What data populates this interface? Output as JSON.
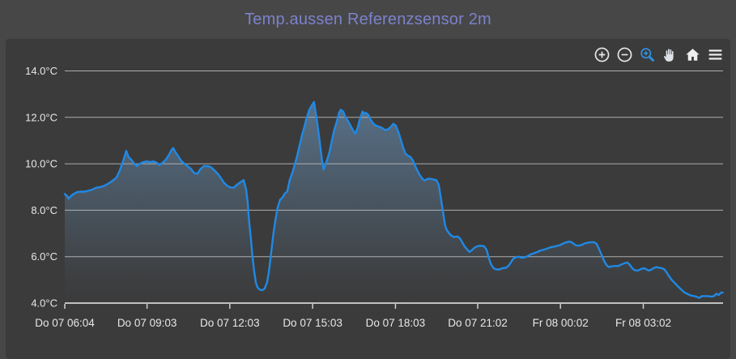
{
  "title": "Temp.aussen Referenzsensor 2m",
  "toolbar": {
    "icon_color": "#e9e9e9",
    "active_color": "#2e8fdf",
    "buttons": [
      {
        "name": "zoom-in",
        "icon": "circle-plus-icon",
        "active": false
      },
      {
        "name": "zoom-out",
        "icon": "circle-minus-icon",
        "active": false
      },
      {
        "name": "box-zoom",
        "icon": "magnifier-plus-icon",
        "active": true
      },
      {
        "name": "pan",
        "icon": "hand-icon",
        "active": false
      },
      {
        "name": "home",
        "icon": "home-icon",
        "active": false
      },
      {
        "name": "menu",
        "icon": "hamburger-icon",
        "active": false
      }
    ]
  },
  "colors": {
    "page_background": "#474747",
    "panel_background": "#3b3b3b",
    "title": "#7b82cb",
    "gridline": "#b9b9b9",
    "axis_line": "#cfcfcf",
    "tick_label": "#e8e8e8",
    "line": "#2089e5",
    "fill_top": "#6f9dc8"
  },
  "chart_data": {
    "type": "area",
    "title": "Temp.aussen Referenzsensor 2m",
    "xlabel": "",
    "ylabel": "",
    "y_unit": "°C",
    "grid": true,
    "legend": "none",
    "x_range": [
      6.07,
      29.92
    ],
    "y_range": [
      4,
      15.1
    ],
    "y_ticks": [
      {
        "v": 4,
        "label": "4.0°C"
      },
      {
        "v": 6,
        "label": "6.0°C"
      },
      {
        "v": 8,
        "label": "8.0°C"
      },
      {
        "v": 10,
        "label": "10.0°C"
      },
      {
        "v": 12,
        "label": "12.0°C"
      },
      {
        "v": 14,
        "label": "14.0°C"
      }
    ],
    "x_ticks": [
      {
        "t": 6.07,
        "label": "Do 07 06:04"
      },
      {
        "t": 9.05,
        "label": "Do 07 09:03"
      },
      {
        "t": 12.05,
        "label": "Do 07 12:03"
      },
      {
        "t": 15.05,
        "label": "Do 07 15:03"
      },
      {
        "t": 18.05,
        "label": "Do 07 18:03"
      },
      {
        "t": 21.03,
        "label": "Do 07 21:02"
      },
      {
        "t": 24.03,
        "label": "Fr 08 00:02"
      },
      {
        "t": 27.03,
        "label": "Fr 08 03:02"
      }
    ],
    "series": [
      {
        "name": "Temp.aussen Referenzsensor 2m",
        "color": "#2089e5",
        "points": [
          [
            6.07,
            8.7
          ],
          [
            6.16,
            8.6
          ],
          [
            6.21,
            8.5
          ],
          [
            6.3,
            8.62
          ],
          [
            6.39,
            8.7
          ],
          [
            6.51,
            8.78
          ],
          [
            6.65,
            8.8
          ],
          [
            6.8,
            8.8
          ],
          [
            6.95,
            8.85
          ],
          [
            7.09,
            8.9
          ],
          [
            7.21,
            8.97
          ],
          [
            7.36,
            9.0
          ],
          [
            7.5,
            9.05
          ],
          [
            7.65,
            9.15
          ],
          [
            7.8,
            9.27
          ],
          [
            7.94,
            9.4
          ],
          [
            8.06,
            9.7
          ],
          [
            8.18,
            10.1
          ],
          [
            8.3,
            10.56
          ],
          [
            8.38,
            10.3
          ],
          [
            8.5,
            10.15
          ],
          [
            8.59,
            10.0
          ],
          [
            8.68,
            9.9
          ],
          [
            8.79,
            10.0
          ],
          [
            8.91,
            10.07
          ],
          [
            9.06,
            10.1
          ],
          [
            9.18,
            10.07
          ],
          [
            9.29,
            10.1
          ],
          [
            9.41,
            10.03
          ],
          [
            9.5,
            9.95
          ],
          [
            9.62,
            10.05
          ],
          [
            9.73,
            10.18
          ],
          [
            9.85,
            10.4
          ],
          [
            9.94,
            10.6
          ],
          [
            10.0,
            10.68
          ],
          [
            10.08,
            10.5
          ],
          [
            10.17,
            10.35
          ],
          [
            10.29,
            10.12
          ],
          [
            10.41,
            10.0
          ],
          [
            10.52,
            9.9
          ],
          [
            10.64,
            9.78
          ],
          [
            10.76,
            9.6
          ],
          [
            10.88,
            9.57
          ],
          [
            10.99,
            9.78
          ],
          [
            11.11,
            9.9
          ],
          [
            11.26,
            9.9
          ],
          [
            11.37,
            9.85
          ],
          [
            11.49,
            9.72
          ],
          [
            11.61,
            9.58
          ],
          [
            11.73,
            9.38
          ],
          [
            11.84,
            9.18
          ],
          [
            11.96,
            9.05
          ],
          [
            12.08,
            8.98
          ],
          [
            12.2,
            8.97
          ],
          [
            12.31,
            9.1
          ],
          [
            12.43,
            9.2
          ],
          [
            12.55,
            9.3
          ],
          [
            12.64,
            8.9
          ],
          [
            12.7,
            8.3
          ],
          [
            12.75,
            7.5
          ],
          [
            12.81,
            6.8
          ],
          [
            12.87,
            6.0
          ],
          [
            12.93,
            5.4
          ],
          [
            12.99,
            4.9
          ],
          [
            13.05,
            4.68
          ],
          [
            13.13,
            4.58
          ],
          [
            13.22,
            4.55
          ],
          [
            13.31,
            4.62
          ],
          [
            13.4,
            4.9
          ],
          [
            13.46,
            5.3
          ],
          [
            13.52,
            5.9
          ],
          [
            13.57,
            6.4
          ],
          [
            13.63,
            7.0
          ],
          [
            13.69,
            7.5
          ],
          [
            13.78,
            8.1
          ],
          [
            13.87,
            8.45
          ],
          [
            13.96,
            8.55
          ],
          [
            14.04,
            8.72
          ],
          [
            14.13,
            8.8
          ],
          [
            14.22,
            9.3
          ],
          [
            14.31,
            9.6
          ],
          [
            14.4,
            9.95
          ],
          [
            14.48,
            10.3
          ],
          [
            14.57,
            10.75
          ],
          [
            14.66,
            11.2
          ],
          [
            14.75,
            11.6
          ],
          [
            14.83,
            11.95
          ],
          [
            14.92,
            12.3
          ],
          [
            15.01,
            12.5
          ],
          [
            15.1,
            12.66
          ],
          [
            15.16,
            12.2
          ],
          [
            15.22,
            11.75
          ],
          [
            15.28,
            11.2
          ],
          [
            15.33,
            10.7
          ],
          [
            15.39,
            10.15
          ],
          [
            15.45,
            9.75
          ],
          [
            15.51,
            9.95
          ],
          [
            15.57,
            10.15
          ],
          [
            15.66,
            10.5
          ],
          [
            15.74,
            10.95
          ],
          [
            15.83,
            11.45
          ],
          [
            15.92,
            11.8
          ],
          [
            16.01,
            12.2
          ],
          [
            16.07,
            12.33
          ],
          [
            16.16,
            12.25
          ],
          [
            16.24,
            12.0
          ],
          [
            16.33,
            11.85
          ],
          [
            16.42,
            11.65
          ],
          [
            16.51,
            11.45
          ],
          [
            16.6,
            11.3
          ],
          [
            16.68,
            11.55
          ],
          [
            16.77,
            11.95
          ],
          [
            16.86,
            12.25
          ],
          [
            16.92,
            12.15
          ],
          [
            16.98,
            12.2
          ],
          [
            17.07,
            12.1
          ],
          [
            17.15,
            11.9
          ],
          [
            17.24,
            11.75
          ],
          [
            17.33,
            11.65
          ],
          [
            17.45,
            11.6
          ],
          [
            17.56,
            11.55
          ],
          [
            17.68,
            11.45
          ],
          [
            17.8,
            11.5
          ],
          [
            17.89,
            11.6
          ],
          [
            17.97,
            11.72
          ],
          [
            18.06,
            11.65
          ],
          [
            18.15,
            11.4
          ],
          [
            18.24,
            11.05
          ],
          [
            18.33,
            10.7
          ],
          [
            18.41,
            10.45
          ],
          [
            18.5,
            10.35
          ],
          [
            18.59,
            10.3
          ],
          [
            18.68,
            10.15
          ],
          [
            18.77,
            9.9
          ],
          [
            18.85,
            9.7
          ],
          [
            18.94,
            9.5
          ],
          [
            19.03,
            9.35
          ],
          [
            19.12,
            9.28
          ],
          [
            19.21,
            9.35
          ],
          [
            19.32,
            9.35
          ],
          [
            19.44,
            9.32
          ],
          [
            19.53,
            9.3
          ],
          [
            19.62,
            9.1
          ],
          [
            19.7,
            8.5
          ],
          [
            19.79,
            7.8
          ],
          [
            19.85,
            7.35
          ],
          [
            19.91,
            7.15
          ],
          [
            20.0,
            7.0
          ],
          [
            20.08,
            6.9
          ],
          [
            20.17,
            6.85
          ],
          [
            20.29,
            6.87
          ],
          [
            20.38,
            6.8
          ],
          [
            20.47,
            6.62
          ],
          [
            20.55,
            6.45
          ],
          [
            20.64,
            6.32
          ],
          [
            20.73,
            6.2
          ],
          [
            20.82,
            6.28
          ],
          [
            20.91,
            6.38
          ],
          [
            21.02,
            6.45
          ],
          [
            21.14,
            6.47
          ],
          [
            21.26,
            6.45
          ],
          [
            21.35,
            6.3
          ],
          [
            21.43,
            5.95
          ],
          [
            21.52,
            5.65
          ],
          [
            21.61,
            5.5
          ],
          [
            21.7,
            5.45
          ],
          [
            21.82,
            5.45
          ],
          [
            21.93,
            5.5
          ],
          [
            22.05,
            5.52
          ],
          [
            22.14,
            5.6
          ],
          [
            22.23,
            5.75
          ],
          [
            22.31,
            5.9
          ],
          [
            22.4,
            5.97
          ],
          [
            22.52,
            6.0
          ],
          [
            22.61,
            5.95
          ],
          [
            22.72,
            5.97
          ],
          [
            22.84,
            6.02
          ],
          [
            22.96,
            6.1
          ],
          [
            23.08,
            6.15
          ],
          [
            23.19,
            6.2
          ],
          [
            23.31,
            6.27
          ],
          [
            23.43,
            6.3
          ],
          [
            23.55,
            6.35
          ],
          [
            23.66,
            6.4
          ],
          [
            23.78,
            6.43
          ],
          [
            23.9,
            6.46
          ],
          [
            24.02,
            6.5
          ],
          [
            24.13,
            6.57
          ],
          [
            24.25,
            6.62
          ],
          [
            24.37,
            6.65
          ],
          [
            24.46,
            6.6
          ],
          [
            24.57,
            6.5
          ],
          [
            24.66,
            6.47
          ],
          [
            24.78,
            6.5
          ],
          [
            24.9,
            6.57
          ],
          [
            25.01,
            6.6
          ],
          [
            25.13,
            6.62
          ],
          [
            25.25,
            6.62
          ],
          [
            25.34,
            6.55
          ],
          [
            25.42,
            6.35
          ],
          [
            25.51,
            6.1
          ],
          [
            25.6,
            5.85
          ],
          [
            25.69,
            5.65
          ],
          [
            25.78,
            5.55
          ],
          [
            25.89,
            5.58
          ],
          [
            26.01,
            5.6
          ],
          [
            26.13,
            5.6
          ],
          [
            26.25,
            5.67
          ],
          [
            26.36,
            5.72
          ],
          [
            26.45,
            5.75
          ],
          [
            26.54,
            5.65
          ],
          [
            26.63,
            5.5
          ],
          [
            26.71,
            5.42
          ],
          [
            26.83,
            5.4
          ],
          [
            26.95,
            5.47
          ],
          [
            27.07,
            5.5
          ],
          [
            27.15,
            5.45
          ],
          [
            27.24,
            5.4
          ],
          [
            27.33,
            5.45
          ],
          [
            27.42,
            5.52
          ],
          [
            27.53,
            5.55
          ],
          [
            27.62,
            5.52
          ],
          [
            27.71,
            5.5
          ],
          [
            27.8,
            5.45
          ],
          [
            27.89,
            5.3
          ],
          [
            27.97,
            5.15
          ],
          [
            28.06,
            5.0
          ],
          [
            28.18,
            4.85
          ],
          [
            28.3,
            4.7
          ],
          [
            28.41,
            4.58
          ],
          [
            28.53,
            4.45
          ],
          [
            28.65,
            4.38
          ],
          [
            28.77,
            4.32
          ],
          [
            28.88,
            4.3
          ],
          [
            28.97,
            4.27
          ],
          [
            29.06,
            4.22
          ],
          [
            29.15,
            4.3
          ],
          [
            29.26,
            4.3
          ],
          [
            29.38,
            4.3
          ],
          [
            29.5,
            4.28
          ],
          [
            29.59,
            4.3
          ],
          [
            29.68,
            4.4
          ],
          [
            29.76,
            4.35
          ],
          [
            29.85,
            4.45
          ],
          [
            29.91,
            4.45
          ]
        ]
      }
    ]
  }
}
